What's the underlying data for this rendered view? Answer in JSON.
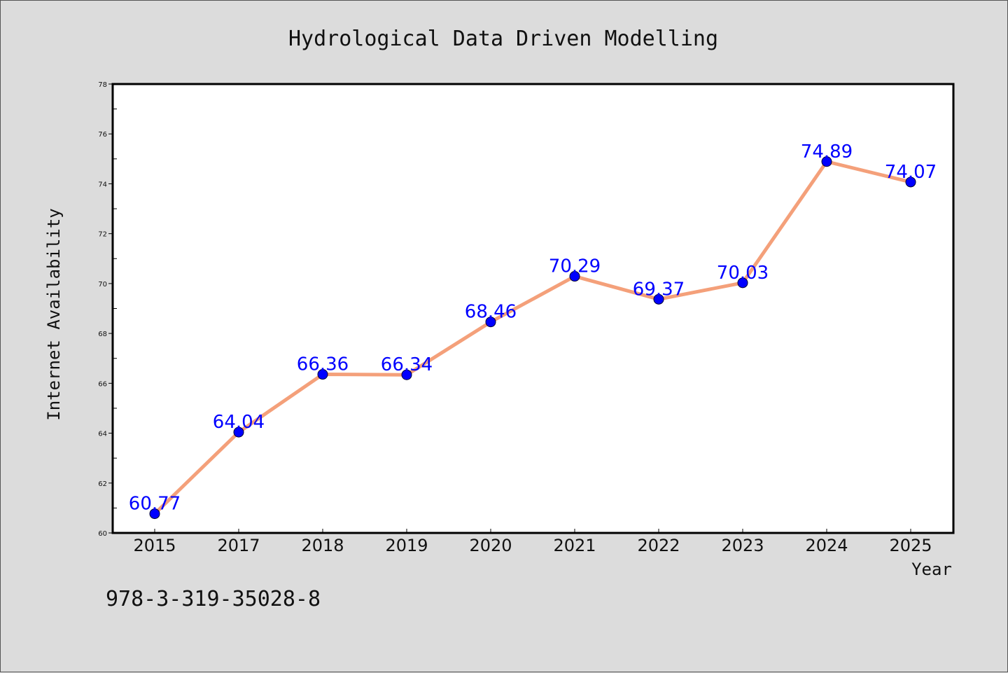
{
  "chart_data": {
    "type": "line",
    "title": "Hydrological Data Driven Modelling",
    "xlabel": "Year",
    "ylabel": "Internet Availability",
    "categories": [
      "2015",
      "2017",
      "2018",
      "2019",
      "2020",
      "2021",
      "2022",
      "2023",
      "2024",
      "2025"
    ],
    "series": [
      {
        "values": [
          60.77,
          64.04,
          66.36,
          66.34,
          68.46,
          70.29,
          69.37,
          70.03,
          74.89,
          74.07
        ],
        "line_color": "#f4a07a",
        "marker_color": "#0000ff"
      }
    ],
    "data_labels": [
      "60.77",
      "64.04",
      "66.36",
      "66.34",
      "68.46",
      "70.29",
      "69.37",
      "70.03",
      "74.89",
      "74.07"
    ],
    "ylim": [
      60,
      78
    ],
    "yticks": [
      60,
      62,
      64,
      66,
      68,
      70,
      72,
      74,
      76,
      78
    ],
    "grid": false,
    "legend": "none"
  },
  "footer": {
    "isbn": "978-3-319-35028-8"
  },
  "colors": {
    "background": "#dcdcdc",
    "plot_background": "#ffffff",
    "line": "#f4a07a",
    "marker": "#0000ff",
    "data_label": "#0000ff"
  }
}
